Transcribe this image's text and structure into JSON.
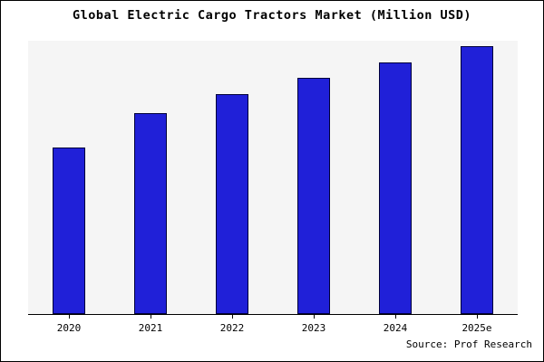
{
  "title": "Global Electric Cargo Tractors Market (Million USD)",
  "source": "Source: Prof Research",
  "colors": {
    "bar_fill": "#2020d8",
    "bar_border": "#00003a",
    "plot_background": "#f5f5f5",
    "axis": "#000000",
    "frame_border": "#000000"
  },
  "chart_data": {
    "type": "bar",
    "title": "Global Electric Cargo Tractors Market (Million USD)",
    "categories": [
      "2020",
      "2021",
      "2022",
      "2023",
      "2024",
      "2025e"
    ],
    "values": [
      62,
      75,
      82,
      88,
      94,
      100
    ],
    "xlabel": "",
    "ylabel": "",
    "ylim": [
      0,
      102
    ],
    "grid": false,
    "legend": false,
    "y_axis_labels_visible": false,
    "value_units": "relative (no y-axis scale shown in image)",
    "annotations": [
      "Source: Prof Research"
    ]
  }
}
